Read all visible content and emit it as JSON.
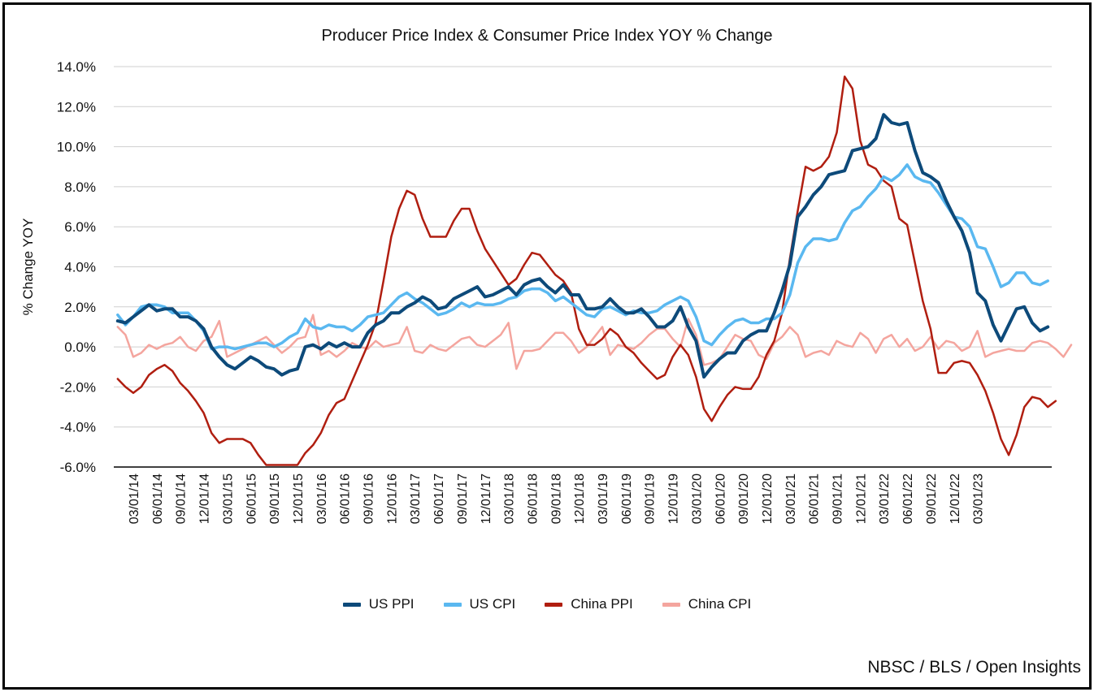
{
  "chart_data": {
    "type": "line",
    "title": "Producer Price Index & Consumer Price Index YOY % Change",
    "xlabel": "",
    "ylabel": "% Change YOY",
    "ylim": [
      -6,
      14
    ],
    "y_ticks": [
      -6,
      -4,
      -2,
      0,
      2,
      4,
      6,
      8,
      10,
      12,
      14
    ],
    "y_tick_labels": [
      "-6.0%",
      "-4.0%",
      "-2.0%",
      "0.0%",
      "2.0%",
      "4.0%",
      "6.0%",
      "8.0%",
      "10.0%",
      "12.0%",
      "14.0%"
    ],
    "x_start": "01/01/14",
    "x_end": "08/01/23",
    "x_ticks": [
      "03/01/14",
      "06/01/14",
      "09/01/14",
      "12/01/14",
      "03/01/15",
      "06/01/15",
      "09/01/15",
      "12/01/15",
      "03/01/16",
      "06/01/16",
      "09/01/16",
      "12/01/16",
      "03/01/17",
      "06/01/17",
      "09/01/17",
      "12/01/17",
      "03/01/18",
      "06/01/18",
      "09/01/18",
      "12/01/18",
      "03/01/19",
      "06/01/19",
      "09/01/19",
      "12/01/19",
      "03/01/20",
      "06/01/20",
      "09/01/20",
      "12/01/20",
      "03/01/21",
      "06/01/21",
      "09/01/21",
      "12/01/21",
      "03/01/22",
      "06/01/22",
      "09/01/22",
      "12/01/22",
      "03/01/23"
    ],
    "grid": true,
    "legend_position": "bottom",
    "series": [
      {
        "name": "US PPI",
        "color": "#0d4a7a",
        "values": [
          1.3,
          1.2,
          1.5,
          1.8,
          2.1,
          1.8,
          1.9,
          1.9,
          1.5,
          1.5,
          1.3,
          0.9,
          0.0,
          -0.5,
          -0.9,
          -1.1,
          -0.8,
          -0.5,
          -0.7,
          -1.0,
          -1.1,
          -1.4,
          -1.2,
          -1.1,
          0.0,
          0.1,
          -0.1,
          0.2,
          0.0,
          0.2,
          0.0,
          0.0,
          0.7,
          1.1,
          1.3,
          1.7,
          1.7,
          2.0,
          2.2,
          2.5,
          2.3,
          1.9,
          2.0,
          2.4,
          2.6,
          2.8,
          3.0,
          2.5,
          2.6,
          2.8,
          3.0,
          2.6,
          3.1,
          3.3,
          3.4,
          3.0,
          2.7,
          3.1,
          2.6,
          2.6,
          1.9,
          1.9,
          2.0,
          2.4,
          2.0,
          1.7,
          1.7,
          1.9,
          1.5,
          1.0,
          1.0,
          1.3,
          2.0,
          1.0,
          0.3,
          -1.5,
          -1.0,
          -0.6,
          -0.3,
          -0.3,
          0.3,
          0.6,
          0.8,
          0.8,
          1.7,
          2.8,
          4.1,
          6.5,
          7.0,
          7.6,
          8.0,
          8.6,
          8.7,
          8.8,
          9.8,
          9.9,
          10.0,
          10.4,
          11.6,
          11.2,
          11.1,
          11.2,
          9.8,
          8.7,
          8.5,
          8.2,
          7.3,
          6.5,
          5.8,
          4.7,
          2.7,
          2.3,
          1.1,
          0.3,
          1.1,
          1.9,
          2.0,
          1.2,
          0.8,
          1.0
        ]
      },
      {
        "name": "US CPI",
        "color": "#5ab8f0",
        "values": [
          1.6,
          1.1,
          1.5,
          2.0,
          2.1,
          2.1,
          2.0,
          1.7,
          1.7,
          1.7,
          1.3,
          0.8,
          -0.1,
          0.0,
          0.0,
          -0.1,
          0.0,
          0.1,
          0.2,
          0.2,
          0.0,
          0.2,
          0.5,
          0.7,
          1.4,
          1.0,
          0.9,
          1.1,
          1.0,
          1.0,
          0.8,
          1.1,
          1.5,
          1.6,
          1.7,
          2.1,
          2.5,
          2.7,
          2.4,
          2.2,
          1.9,
          1.6,
          1.7,
          1.9,
          2.2,
          2.0,
          2.2,
          2.1,
          2.1,
          2.2,
          2.4,
          2.5,
          2.8,
          2.9,
          2.9,
          2.7,
          2.3,
          2.5,
          2.2,
          1.9,
          1.6,
          1.5,
          1.9,
          2.0,
          1.8,
          1.6,
          1.8,
          1.7,
          1.7,
          1.8,
          2.1,
          2.3,
          2.5,
          2.3,
          1.5,
          0.3,
          0.1,
          0.6,
          1.0,
          1.3,
          1.4,
          1.2,
          1.2,
          1.4,
          1.4,
          1.7,
          2.6,
          4.2,
          5.0,
          5.4,
          5.4,
          5.3,
          5.4,
          6.2,
          6.8,
          7.0,
          7.5,
          7.9,
          8.5,
          8.3,
          8.6,
          9.1,
          8.5,
          8.3,
          8.2,
          7.7,
          7.1,
          6.5,
          6.4,
          6.0,
          5.0,
          4.9,
          4.0,
          3.0,
          3.2,
          3.7,
          3.7,
          3.2,
          3.1,
          3.3
        ]
      },
      {
        "name": "China PPI",
        "color": "#b01e10",
        "values": [
          -1.6,
          -2.0,
          -2.3,
          -2.0,
          -1.4,
          -1.1,
          -0.9,
          -1.2,
          -1.8,
          -2.2,
          -2.7,
          -3.3,
          -4.3,
          -4.8,
          -4.6,
          -4.6,
          -4.6,
          -4.8,
          -5.4,
          -5.9,
          -5.9,
          -5.9,
          -5.9,
          -5.9,
          -5.3,
          -4.9,
          -4.3,
          -3.4,
          -2.8,
          -2.6,
          -1.7,
          -0.8,
          0.1,
          1.2,
          3.3,
          5.5,
          6.9,
          7.8,
          7.6,
          6.4,
          5.5,
          5.5,
          5.5,
          6.3,
          6.9,
          6.9,
          5.8,
          4.9,
          4.3,
          3.7,
          3.1,
          3.4,
          4.1,
          4.7,
          4.6,
          4.1,
          3.6,
          3.3,
          2.7,
          0.9,
          0.1,
          0.1,
          0.4,
          0.9,
          0.6,
          0.0,
          -0.3,
          -0.8,
          -1.2,
          -1.6,
          -1.4,
          -0.5,
          0.1,
          -0.4,
          -1.5,
          -3.1,
          -3.7,
          -3.0,
          -2.4,
          -2.0,
          -2.1,
          -2.1,
          -1.5,
          -0.4,
          0.3,
          1.7,
          4.4,
          6.8,
          9.0,
          8.8,
          9.0,
          9.5,
          10.7,
          13.5,
          12.9,
          10.3,
          9.1,
          8.9,
          8.3,
          8.0,
          6.4,
          6.1,
          4.2,
          2.3,
          0.9,
          -1.3,
          -1.3,
          -0.8,
          -0.7,
          -0.8,
          -1.4,
          -2.2,
          -3.3,
          -4.6,
          -5.4,
          -4.4,
          -3.0,
          -2.5,
          -2.6,
          -3.0,
          -2.7
        ]
      },
      {
        "name": "China CPI",
        "color": "#f4a59e",
        "values": [
          1.0,
          0.6,
          -0.5,
          -0.3,
          0.1,
          -0.1,
          0.1,
          0.2,
          0.5,
          0.0,
          -0.2,
          0.3,
          0.5,
          1.3,
          -0.5,
          -0.3,
          -0.1,
          0.1,
          0.3,
          0.5,
          0.1,
          -0.3,
          0.0,
          0.4,
          0.5,
          1.6,
          -0.4,
          -0.2,
          -0.5,
          -0.2,
          0.2,
          0.0,
          -0.1,
          0.3,
          0.0,
          0.1,
          0.2,
          1.0,
          -0.2,
          -0.3,
          0.1,
          -0.1,
          -0.2,
          0.1,
          0.4,
          0.5,
          0.1,
          0.0,
          0.3,
          0.6,
          1.2,
          -1.1,
          -0.2,
          -0.2,
          -0.1,
          0.3,
          0.7,
          0.7,
          0.3,
          -0.3,
          0.0,
          0.5,
          1.0,
          -0.4,
          0.1,
          0.0,
          -0.1,
          0.2,
          0.6,
          0.9,
          0.9,
          0.4,
          0.0,
          1.4,
          0.6,
          -0.9,
          -0.8,
          -0.6,
          0.0,
          0.6,
          0.4,
          0.3,
          -0.4,
          -0.6,
          0.2,
          0.5,
          1.0,
          0.6,
          -0.5,
          -0.3,
          -0.2,
          -0.4,
          0.3,
          0.1,
          0.0,
          0.7,
          0.4,
          -0.3,
          0.4,
          0.6,
          0.0,
          0.4,
          -0.2,
          0.0,
          0.5,
          -0.1,
          0.3,
          0.2,
          -0.2,
          0.0,
          0.8,
          -0.5,
          -0.3,
          -0.2,
          -0.1,
          -0.2,
          -0.2,
          0.2,
          0.3,
          0.2,
          -0.1,
          -0.5,
          0.1
        ]
      }
    ]
  },
  "source_label": "NBSC / BLS / Open Insights"
}
